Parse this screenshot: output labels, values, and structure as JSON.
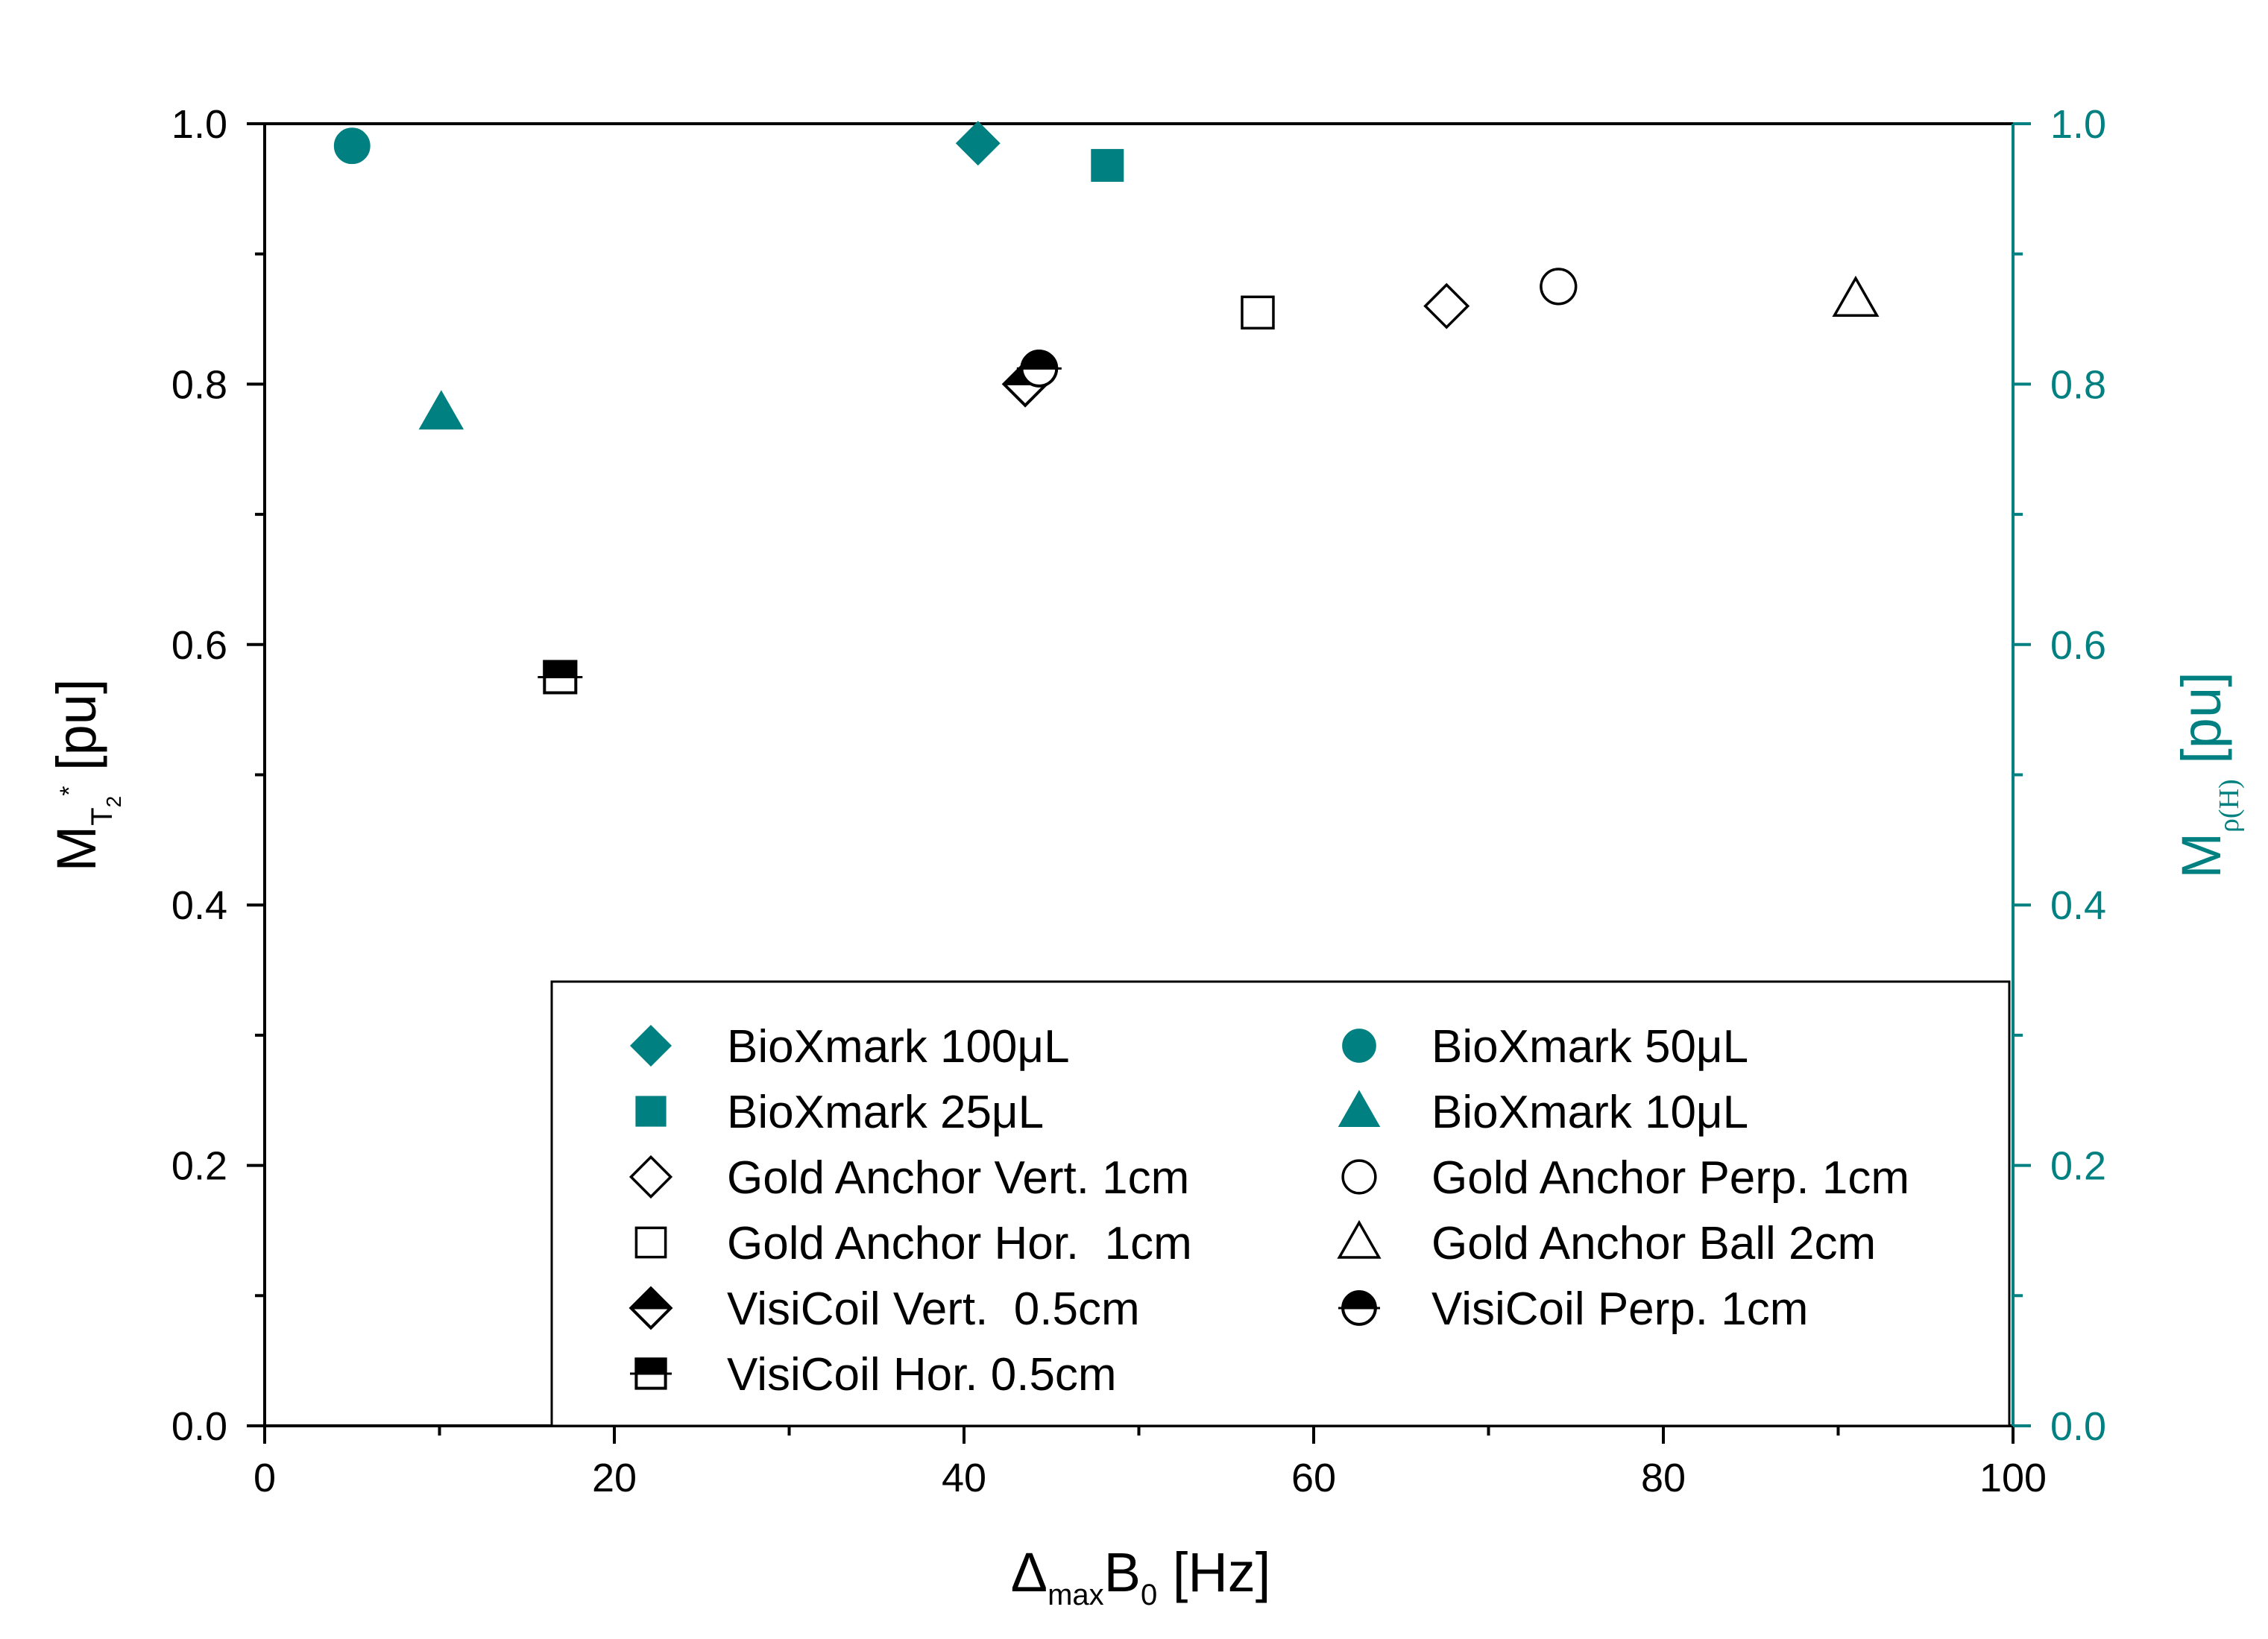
{
  "chart_data": {
    "type": "scatter",
    "x_axis": {
      "label_main": "Δ",
      "label_sub": "max",
      "label_main2": "B",
      "label_sub2": "0",
      "label_unit": " [Hz]",
      "range": [
        0,
        100
      ],
      "ticks": [
        0,
        20,
        40,
        60,
        80,
        100
      ],
      "tick_labels": [
        "0",
        "20",
        "40",
        "60",
        "80",
        "100"
      ],
      "minor_step": 10
    },
    "y_left": {
      "label_main": "M",
      "label_sub": "T",
      "label_subsub": "2",
      "label_sup": "*",
      "label_unit": " [pu]",
      "range": [
        0,
        1
      ],
      "ticks": [
        0,
        0.2,
        0.4,
        0.6,
        0.8,
        1.0
      ],
      "tick_labels": [
        "0.0",
        "0.2",
        "0.4",
        "0.6",
        "0.8",
        "1.0"
      ],
      "minor_step": 0.1
    },
    "y_right": {
      "label_main": "M",
      "label_sub": "ρ(H)",
      "label_unit": " [pu]",
      "range": [
        0,
        1
      ],
      "ticks": [
        0,
        0.2,
        0.4,
        0.6,
        0.8,
        1.0
      ],
      "tick_labels": [
        "0.0",
        "0.2",
        "0.4",
        "0.6",
        "0.8",
        "1.0"
      ],
      "minor_step": 0.1,
      "color": "#008080"
    },
    "series": [
      {
        "name": "BioXmark 100μL",
        "marker": "diamond",
        "fill": "teal",
        "axis": "right",
        "x": 40.8,
        "y": 0.985
      },
      {
        "name": "BioXmark 50μL",
        "marker": "circle",
        "fill": "teal",
        "axis": "right",
        "x": 5,
        "y": 0.983
      },
      {
        "name": "BioXmark 25μL",
        "marker": "square",
        "fill": "teal",
        "axis": "right",
        "x": 48.2,
        "y": 0.968
      },
      {
        "name": "BioXmark 10μL",
        "marker": "triangle",
        "fill": "teal",
        "axis": "right",
        "x": 10.1,
        "y": 0.778
      },
      {
        "name": "Gold Anchor Vert. 1cm",
        "marker": "diamond",
        "fill": "open",
        "axis": "left",
        "x": 67.6,
        "y": 0.86
      },
      {
        "name": "Gold Anchor Perp. 1cm",
        "marker": "circle",
        "fill": "open",
        "axis": "left",
        "x": 74,
        "y": 0.875
      },
      {
        "name": "Gold Anchor Hor.  1cm",
        "marker": "square",
        "fill": "open",
        "axis": "left",
        "x": 56.8,
        "y": 0.855
      },
      {
        "name": "Gold Anchor Ball 2cm",
        "marker": "triangle",
        "fill": "open",
        "axis": "left",
        "x": 91,
        "y": 0.865
      },
      {
        "name": "VisiCoil Vert.  0.5cm",
        "marker": "diamond",
        "fill": "half",
        "axis": "left",
        "x": 43.5,
        "y": 0.8
      },
      {
        "name": "VisiCoil Perp. 1cm",
        "marker": "circle",
        "fill": "half",
        "axis": "left",
        "x": 44.3,
        "y": 0.812
      },
      {
        "name": "VisiCoil Hor. 0.5cm",
        "marker": "square",
        "fill": "half",
        "axis": "left",
        "x": 16.9,
        "y": 0.575
      }
    ],
    "legend": {
      "position": "bottom-right",
      "columns": [
        [
          "BioXmark 100μL",
          "BioXmark 25μL",
          "Gold Anchor Vert. 1cm",
          "Gold Anchor Hor.  1cm",
          "VisiCoil Vert.  0.5cm",
          "VisiCoil Hor. 0.5cm"
        ],
        [
          "BioXmark 50μL",
          "BioXmark 10μL",
          "Gold Anchor Perp. 1cm",
          "Gold Anchor Ball 2cm",
          "VisiCoil Perp. 1cm"
        ]
      ]
    },
    "grid": false
  },
  "colors": {
    "teal": "#008080",
    "black": "#000000"
  }
}
